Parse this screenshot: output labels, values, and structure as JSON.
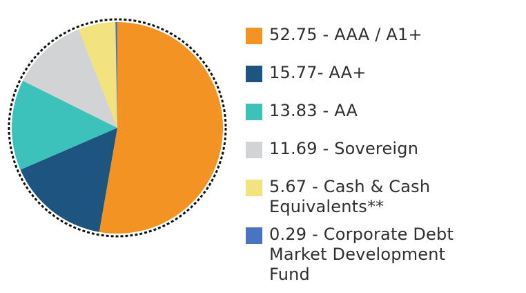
{
  "chart_data": {
    "type": "pie",
    "slices": [
      {
        "value": 52.75,
        "label": "52.75 - AAA / A1+",
        "color": "#f39323"
      },
      {
        "value": 15.77,
        "label": "15.77- AA+",
        "color": "#1e5580"
      },
      {
        "value": 13.83,
        "label": "13.83 - AA",
        "color": "#3cc2bb"
      },
      {
        "value": 11.69,
        "label": "11.69 - Sovereign",
        "color": "#d1d3d4"
      },
      {
        "value": 5.67,
        "label": "5.67 - Cash & Cash\nEquivalents**",
        "color": "#f2e37f"
      },
      {
        "value": 0.29,
        "label": "0.29 - Corporate Debt\nMarket Development\nFund",
        "color": "#4a74c2"
      }
    ],
    "legend_position": "right",
    "outline_style": "dotted"
  }
}
